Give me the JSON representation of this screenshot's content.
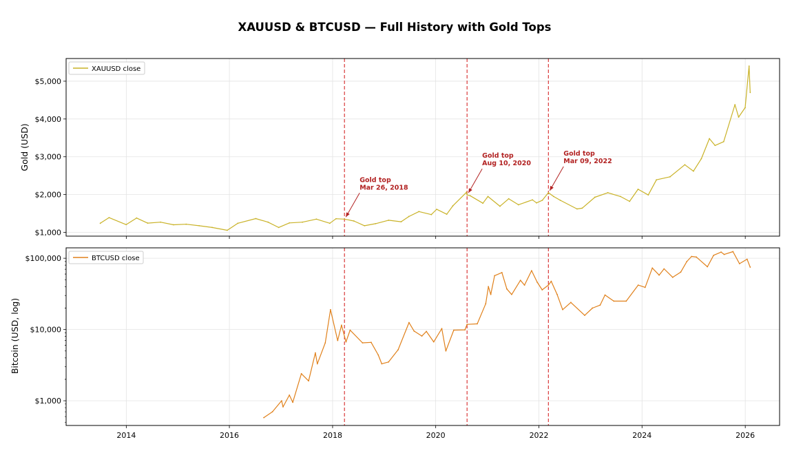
{
  "title": "XAUUSD & BTCUSD — Full History with Gold Tops",
  "colors": {
    "gold_line": "#c9b227",
    "btc_line": "#e0801a",
    "top_marker": "#d62728",
    "annotation": "#b22222",
    "grid": "#e3e3e3",
    "axis": "#000000"
  },
  "chart_data": [
    {
      "type": "line",
      "ylabel": "Gold (USD)",
      "yscale": "linear",
      "ylim": [
        900,
        5600
      ],
      "yticks": [
        1000,
        2000,
        3000,
        4000,
        5000
      ],
      "ytick_labels": [
        "$1,000",
        "$2,000",
        "$3,000",
        "$4,000",
        "$5,000"
      ],
      "grid": true,
      "legend": {
        "placement": "upper-left",
        "entries": [
          "XAUUSD close"
        ]
      },
      "series": [
        {
          "name": "XAUUSD close",
          "x": [
            "2013-07-01",
            "2013-09-01",
            "2013-12-31",
            "2014-03-15",
            "2014-06-01",
            "2014-09-01",
            "2014-12-01",
            "2015-03-01",
            "2015-06-01",
            "2015-09-01",
            "2015-12-17",
            "2016-03-01",
            "2016-07-06",
            "2016-10-01",
            "2016-12-15",
            "2017-03-01",
            "2017-06-01",
            "2017-09-08",
            "2017-12-12",
            "2018-01-25",
            "2018-03-26",
            "2018-06-01",
            "2018-08-15",
            "2018-11-01",
            "2019-02-01",
            "2019-05-01",
            "2019-06-25",
            "2019-09-04",
            "2019-12-01",
            "2020-01-08",
            "2020-03-19",
            "2020-05-01",
            "2020-08-06",
            "2020-08-10",
            "2020-09-01",
            "2020-11-30",
            "2021-01-05",
            "2021-03-31",
            "2021-06-01",
            "2021-08-09",
            "2021-11-16",
            "2021-12-15",
            "2022-01-25",
            "2022-03-09",
            "2022-04-15",
            "2022-06-01",
            "2022-09-28",
            "2022-11-03",
            "2023-02-01",
            "2023-05-04",
            "2023-08-01",
            "2023-10-05",
            "2023-12-04",
            "2024-02-14",
            "2024-04-12",
            "2024-07-17",
            "2024-10-30",
            "2024-12-30",
            "2025-02-24",
            "2025-04-22",
            "2025-06-01",
            "2025-08-01",
            "2025-10-20",
            "2025-11-15",
            "2025-12-31",
            "2026-01-28",
            "2026-02-05"
          ],
          "y": [
            1240,
            1390,
            1205,
            1380,
            1245,
            1270,
            1200,
            1215,
            1175,
            1130,
            1055,
            1240,
            1365,
            1270,
            1130,
            1250,
            1270,
            1350,
            1240,
            1360,
            1350,
            1300,
            1175,
            1230,
            1320,
            1280,
            1420,
            1550,
            1470,
            1610,
            1480,
            1700,
            2060,
            1990,
            1970,
            1770,
            1950,
            1690,
            1890,
            1730,
            1860,
            1780,
            1850,
            2050,
            1950,
            1850,
            1620,
            1640,
            1930,
            2050,
            1950,
            1820,
            2140,
            1990,
            2390,
            2470,
            2790,
            2620,
            2950,
            3480,
            3300,
            3400,
            4380,
            4050,
            4300,
            5400,
            4700
          ]
        }
      ],
      "annotations": [
        {
          "label": "Gold top",
          "date": "Mar 26, 2018",
          "x": "2018-03-26",
          "y": 1350
        },
        {
          "label": "Gold top",
          "date": "Aug 10, 2020",
          "x": "2020-08-10",
          "y": 1990
        },
        {
          "label": "Gold top",
          "date": "Mar 09, 2022",
          "x": "2022-03-09",
          "y": 2050
        }
      ],
      "vlines": [
        "2018-03-26",
        "2020-08-10",
        "2022-03-09"
      ]
    },
    {
      "type": "line",
      "ylabel": "Bitcoin (USD, log)",
      "yscale": "log",
      "ylim": [
        450,
        140000
      ],
      "yticks": [
        1000,
        10000,
        100000
      ],
      "ytick_labels": [
        "$1,000",
        "$10,000",
        "$100,000"
      ],
      "grid": true,
      "legend": {
        "placement": "upper-left",
        "entries": [
          "BTCUSD close"
        ]
      },
      "xlabel": "",
      "xlim": [
        "2012-11-01",
        "2026-09-01"
      ],
      "xticks": [
        "2014-01-01",
        "2016-01-01",
        "2018-01-01",
        "2020-01-01",
        "2022-01-01",
        "2024-01-01",
        "2026-01-01"
      ],
      "xtick_labels": [
        "2014",
        "2016",
        "2018",
        "2020",
        "2022",
        "2024",
        "2026"
      ],
      "series": [
        {
          "name": "BTCUSD close",
          "x": [
            "2016-09-01",
            "2016-11-01",
            "2017-01-05",
            "2017-01-15",
            "2017-03-01",
            "2017-03-25",
            "2017-05-25",
            "2017-07-15",
            "2017-09-01",
            "2017-09-15",
            "2017-11-10",
            "2017-12-17",
            "2018-02-06",
            "2018-03-05",
            "2018-04-06",
            "2018-05-05",
            "2018-08-01",
            "2018-10-01",
            "2018-11-20",
            "2018-12-15",
            "2019-02-01",
            "2019-04-10",
            "2019-06-26",
            "2019-08-01",
            "2019-09-25",
            "2019-10-27",
            "2019-12-18",
            "2020-02-13",
            "2020-03-13",
            "2020-05-08",
            "2020-07-26",
            "2020-08-10",
            "2020-10-21",
            "2020-12-20",
            "2021-01-08",
            "2021-01-25",
            "2021-02-21",
            "2021-04-14",
            "2021-05-19",
            "2021-06-22",
            "2021-08-23",
            "2021-09-21",
            "2021-11-10",
            "2021-12-20",
            "2022-01-24",
            "2022-03-09",
            "2022-03-29",
            "2022-05-10",
            "2022-06-18",
            "2022-08-15",
            "2022-11-21",
            "2023-01-15",
            "2023-03-10",
            "2023-04-14",
            "2023-06-15",
            "2023-09-11",
            "2023-12-05",
            "2024-01-23",
            "2024-03-14",
            "2024-05-01",
            "2024-06-05",
            "2024-08-05",
            "2024-10-01",
            "2024-11-13",
            "2024-12-17",
            "2025-01-20",
            "2025-04-08",
            "2025-05-22",
            "2025-07-14",
            "2025-08-05",
            "2025-10-06",
            "2025-11-21",
            "2026-01-14",
            "2026-02-05"
          ],
          "y": [
            580,
            700,
            1000,
            820,
            1200,
            950,
            2400,
            1900,
            4700,
            3300,
            6500,
            19000,
            7000,
            11500,
            6700,
            9800,
            6500,
            6600,
            4400,
            3300,
            3500,
            5200,
            12500,
            9500,
            8100,
            9400,
            6700,
            10300,
            5000,
            9800,
            9900,
            11800,
            12000,
            23000,
            40000,
            31000,
            57000,
            63000,
            37000,
            31000,
            49000,
            42000,
            67000,
            46000,
            36000,
            42000,
            47500,
            31000,
            19000,
            24000,
            15800,
            20000,
            22000,
            30500,
            25000,
            25000,
            42000,
            39000,
            73000,
            58000,
            71000,
            54000,
            64000,
            90000,
            106000,
            104000,
            76000,
            110000,
            122000,
            113000,
            124000,
            84000,
            97000,
            75000
          ]
        }
      ],
      "vlines": [
        "2018-03-26",
        "2020-08-10",
        "2022-03-09"
      ]
    }
  ]
}
